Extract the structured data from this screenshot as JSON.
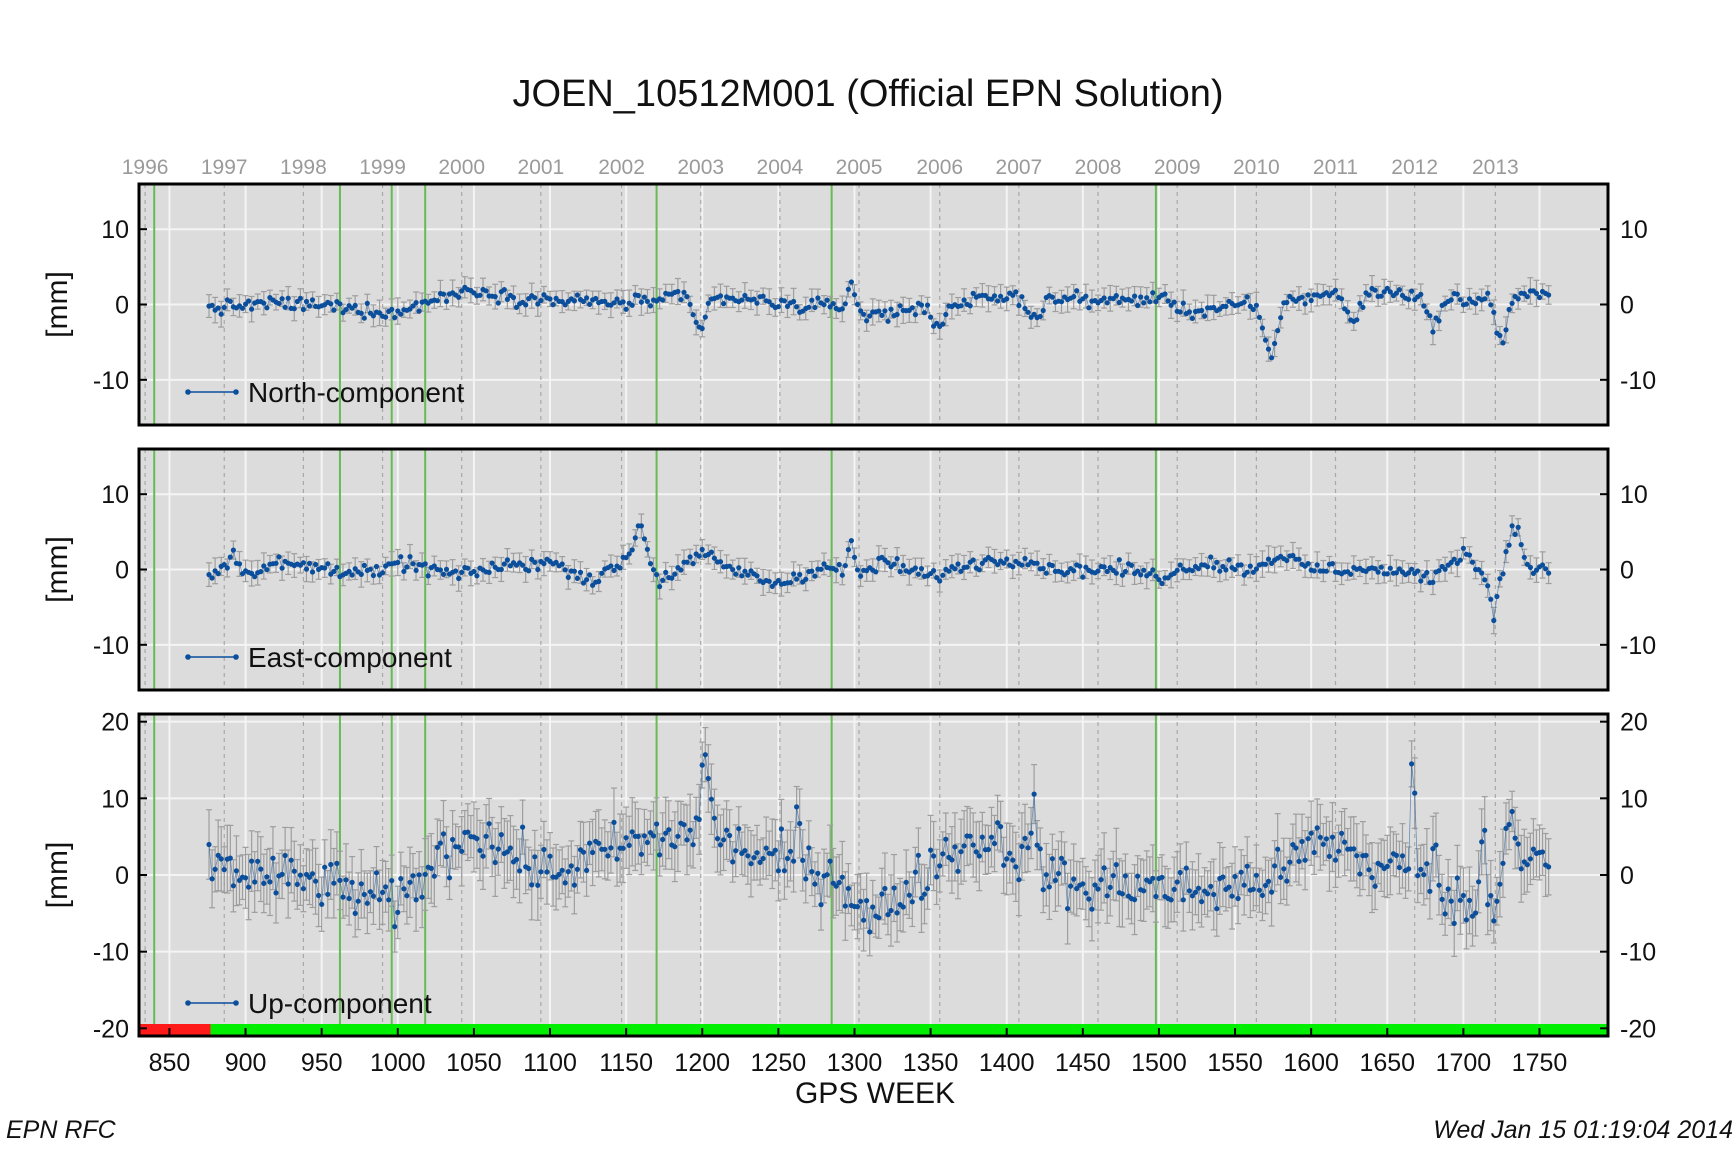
{
  "chart_data": {
    "type": "scatter",
    "title": "JOEN_10512M001 (Official EPN Solution)",
    "xlabel": "GPS WEEK",
    "xlim": [
      830,
      1795
    ],
    "x_ticks": [
      850,
      900,
      950,
      1000,
      1050,
      1100,
      1150,
      1200,
      1250,
      1300,
      1350,
      1400,
      1450,
      1500,
      1550,
      1600,
      1650,
      1700,
      1750
    ],
    "x_tick_labels": [
      "850",
      "900",
      "950",
      "1000",
      "1050",
      "1100",
      "1150",
      "1200",
      "1250",
      "1300",
      "1350",
      "1400",
      "1450",
      "1500",
      "1550",
      "1600",
      "1650",
      "1700",
      "1750"
    ],
    "year_ticks": [
      {
        "label": "1996",
        "week": 834
      },
      {
        "label": "1997",
        "week": 886
      },
      {
        "label": "1998",
        "week": 938
      },
      {
        "label": "1999",
        "week": 990
      },
      {
        "label": "2000",
        "week": 1042
      },
      {
        "label": "2001",
        "week": 1094
      },
      {
        "label": "2002",
        "week": 1147
      },
      {
        "label": "2003",
        "week": 1199
      },
      {
        "label": "2004",
        "week": 1251
      },
      {
        "label": "2005",
        "week": 1303
      },
      {
        "label": "2006",
        "week": 1356
      },
      {
        "label": "2007",
        "week": 1408
      },
      {
        "label": "2008",
        "week": 1460
      },
      {
        "label": "2009",
        "week": 1512
      },
      {
        "label": "2010",
        "week": 1564
      },
      {
        "label": "2011",
        "week": 1616
      },
      {
        "label": "2012",
        "week": 1668
      },
      {
        "label": "2013",
        "week": 1721
      }
    ],
    "event_weeks": [
      840,
      962,
      996,
      1018,
      1170,
      1285,
      1498
    ],
    "grid": true,
    "legend_position": "bottom-left",
    "colors": {
      "series": "#0b4f9c",
      "error_bar": "#9e9e9e",
      "panel_bg": "#dcdcdc",
      "event_line": "#66bb55",
      "availability_missing": "#ff1a1a",
      "availability_present": "#00ee00"
    },
    "availability": [
      {
        "from": 830,
        "to": 877,
        "status": "missing"
      },
      {
        "from": 877,
        "to": 1795,
        "status": "present"
      }
    ],
    "panels": [
      {
        "name": "North-component",
        "ylabel": "[mm]",
        "ylim": [
          -16,
          16
        ],
        "y_ticks": [
          -10,
          0,
          10
        ],
        "x_range": [
          876,
          1756
        ],
        "error_bar": 1.3,
        "baseline": [
          [
            876,
            -0.5
          ],
          [
            920,
            0.2
          ],
          [
            960,
            -0.3
          ],
          [
            1000,
            -1.2
          ],
          [
            1020,
            0.5
          ],
          [
            1050,
            2.0
          ],
          [
            1080,
            0.8
          ],
          [
            1120,
            0.4
          ],
          [
            1150,
            0.2
          ],
          [
            1190,
            1.0
          ],
          [
            1230,
            0.6
          ],
          [
            1270,
            -0.3
          ],
          [
            1290,
            -0.2
          ],
          [
            1310,
            -1.5
          ],
          [
            1350,
            -0.2
          ],
          [
            1400,
            1.0
          ],
          [
            1440,
            0.7
          ],
          [
            1480,
            0.5
          ],
          [
            1500,
            1.0
          ],
          [
            1520,
            -1.0
          ],
          [
            1560,
            0.0
          ],
          [
            1600,
            1.0
          ],
          [
            1620,
            2.0
          ],
          [
            1660,
            1.5
          ],
          [
            1700,
            0.5
          ],
          [
            1730,
            1.2
          ],
          [
            1756,
            1.2
          ]
        ],
        "dips": [
          [
            1198,
            -4.5,
            5
          ],
          [
            1298,
            4.0,
            3
          ],
          [
            1355,
            -2.5,
            6
          ],
          [
            1418,
            -2.5,
            6
          ],
          [
            1573,
            -7.0,
            6
          ],
          [
            1627,
            -4.0,
            7
          ],
          [
            1680,
            -3.5,
            6
          ],
          [
            1725,
            -6.0,
            5
          ]
        ]
      },
      {
        "name": "East-component",
        "ylabel": "[mm]",
        "ylim": [
          -16,
          16
        ],
        "y_ticks": [
          -10,
          0,
          10
        ],
        "x_range": [
          876,
          1756
        ],
        "error_bar": 1.3,
        "baseline": [
          [
            876,
            -1.0
          ],
          [
            892,
            2.0
          ],
          [
            900,
            -0.5
          ],
          [
            920,
            0.8
          ],
          [
            960,
            0.0
          ],
          [
            990,
            -0.5
          ],
          [
            1000,
            1.0
          ],
          [
            1040,
            -0.8
          ],
          [
            1070,
            0.5
          ],
          [
            1100,
            1.0
          ],
          [
            1130,
            -1.5
          ],
          [
            1150,
            1.5
          ],
          [
            1158,
            4.0
          ],
          [
            1172,
            -1.5
          ],
          [
            1200,
            2.0
          ],
          [
            1220,
            0.0
          ],
          [
            1250,
            -2.0
          ],
          [
            1280,
            0.5
          ],
          [
            1300,
            -1.0
          ],
          [
            1320,
            1.0
          ],
          [
            1350,
            -1.0
          ],
          [
            1380,
            1.0
          ],
          [
            1410,
            1.5
          ],
          [
            1430,
            0.0
          ],
          [
            1480,
            0.0
          ],
          [
            1500,
            -1.0
          ],
          [
            1530,
            1.0
          ],
          [
            1560,
            0.0
          ],
          [
            1580,
            2.0
          ],
          [
            1600,
            0.0
          ],
          [
            1640,
            0.0
          ],
          [
            1680,
            -1.0
          ],
          [
            1700,
            2.5
          ],
          [
            1710,
            0.0
          ],
          [
            1720,
            -2.5
          ],
          [
            1732,
            4.0
          ],
          [
            1745,
            0.0
          ],
          [
            1756,
            0.0
          ]
        ],
        "dips": [
          [
            1298,
            4.5,
            3
          ],
          [
            1160,
            2.5,
            4
          ],
          [
            1720,
            -3.5,
            3
          ],
          [
            1735,
            2.5,
            3
          ]
        ]
      },
      {
        "name": "Up-component",
        "ylabel": "[mm]",
        "ylim": [
          -21,
          21
        ],
        "y_ticks": [
          -20,
          -10,
          0,
          10,
          20
        ],
        "x_range": [
          876,
          1756
        ],
        "error_bar": 3.5,
        "baseline": [
          [
            876,
            2.0
          ],
          [
            900,
            0.0
          ],
          [
            950,
            -1.0
          ],
          [
            1000,
            -4.0
          ],
          [
            1030,
            3.0
          ],
          [
            1050,
            6.0
          ],
          [
            1080,
            2.0
          ],
          [
            1100,
            0.0
          ],
          [
            1150,
            4.0
          ],
          [
            1180,
            5.0
          ],
          [
            1200,
            6.0
          ],
          [
            1230,
            3.0
          ],
          [
            1260,
            1.0
          ],
          [
            1290,
            0.0
          ],
          [
            1310,
            -6.0
          ],
          [
            1340,
            -1.0
          ],
          [
            1360,
            3.0
          ],
          [
            1390,
            5.0
          ],
          [
            1420,
            1.0
          ],
          [
            1450,
            -2.0
          ],
          [
            1480,
            -1.0
          ],
          [
            1510,
            -2.0
          ],
          [
            1540,
            -2.0
          ],
          [
            1580,
            0.0
          ],
          [
            1600,
            4.0
          ],
          [
            1620,
            4.0
          ],
          [
            1640,
            1.0
          ],
          [
            1660,
            1.0
          ],
          [
            1700,
            -4.0
          ],
          [
            1720,
            -3.0
          ],
          [
            1735,
            4.0
          ],
          [
            1756,
            1.0
          ]
        ],
        "dips": [
          [
            1202,
            9.0,
            4
          ],
          [
            1262,
            8.0,
            2
          ],
          [
            1418,
            10.0,
            2
          ],
          [
            1667,
            16.0,
            2
          ],
          [
            1682,
            8.0,
            2
          ],
          [
            1713,
            10.0,
            2
          ],
          [
            1730,
            8.0,
            3
          ]
        ]
      }
    ]
  },
  "footer": {
    "left": "EPN RFC",
    "right": "Wed Jan 15 01:19:04 2014"
  }
}
